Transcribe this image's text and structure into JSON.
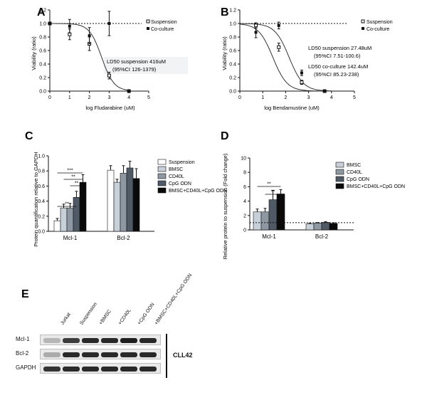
{
  "panels": {
    "A": {
      "letter": "A",
      "xlabel": "log Fludarabine (uM)",
      "ylabel": "Viability (ratio)",
      "annotation": [
        "LD50 suspension 416uM",
        "(95%CI 126-1379)"
      ],
      "legend": [
        "Suspension",
        "Co-culture"
      ]
    },
    "B": {
      "letter": "B",
      "xlabel": "log Bendamustine (uM)",
      "ylabel": "Viability (ratio)",
      "annotation1": [
        "LD50 suspension 27.48uM",
        "(95%CI 7.51-100.6)"
      ],
      "annotation2": [
        "LD50 co-culture 142.4uM",
        "(95%CI 85.23-238)"
      ],
      "legend": [
        "Suspension",
        "Co-culture"
      ]
    },
    "C": {
      "letter": "C",
      "ylabel": "Protein quantification relative to GAPDH",
      "legend": [
        "Suspension",
        "BMSC",
        "CD40L",
        "CpG ODN",
        "BMSC+CD40L+CpG ODN"
      ],
      "sig": [
        "***",
        "**",
        "**",
        "**"
      ]
    },
    "D": {
      "letter": "D",
      "ylabel": "Relative protein to suspension (Fold change)",
      "legend": [
        "BMSC",
        "CD40L",
        "CpG ODN",
        "BMSC+CD40L+CpG ODN"
      ],
      "sig": [
        "**",
        "**"
      ]
    },
    "E": {
      "letter": "E",
      "lanes": [
        "Jurkat",
        "Suspension",
        "+BMSC",
        "+CD40L",
        "+CpG ODN",
        "+BMSC+CD40L+CpG ODN"
      ],
      "rows": [
        "Mcl-1",
        "Bcl-2",
        "GAPDH"
      ],
      "cell_line": "CLL42",
      "band_intensity": {
        "Mcl-1": [
          0.25,
          0.85,
          0.95,
          0.95,
          1.0,
          0.95
        ],
        "Bcl-2": [
          0.3,
          0.95,
          0.95,
          0.95,
          0.95,
          0.95
        ],
        "GAPDH": [
          0.9,
          0.95,
          0.95,
          0.95,
          0.95,
          0.95
        ]
      }
    }
  },
  "chart_data": [
    {
      "type": "scatter",
      "panel": "A",
      "xlabel": "log Fludarabine (uM)",
      "ylabel": "Viability (ratio)",
      "xlim": [
        0,
        5
      ],
      "ylim": [
        0,
        1.2
      ],
      "xticks": [
        0,
        1,
        2,
        3,
        4,
        5
      ],
      "yticks": [
        0.0,
        0.2,
        0.4,
        0.6,
        0.8,
        1.0,
        1.2
      ],
      "series": [
        {
          "name": "Suspension",
          "x": [
            0,
            1,
            2,
            3,
            4
          ],
          "y": [
            1.0,
            0.84,
            0.7,
            0.23,
            0.0
          ],
          "err": [
            0.02,
            0.08,
            0.1,
            0.05,
            0.01
          ],
          "fit": "sigmoid",
          "ld50_log": 2.62
        },
        {
          "name": "Co-culture",
          "x": [
            0,
            1,
            2,
            3,
            4
          ],
          "y": [
            1.0,
            0.96,
            0.82,
            1.0,
            0.0
          ],
          "err": [
            0.02,
            0.1,
            0.12,
            0.18,
            0.01
          ],
          "fit": "dotted_at_1"
        }
      ]
    },
    {
      "type": "scatter",
      "panel": "B",
      "xlabel": "log Bendamustine (uM)",
      "ylabel": "Viability (ratio)",
      "xlim": [
        0,
        5
      ],
      "ylim": [
        0,
        1.2
      ],
      "xticks": [
        0,
        1,
        2,
        3,
        4,
        5
      ],
      "yticks": [
        0.0,
        0.2,
        0.4,
        0.6,
        0.8,
        1.0,
        1.2
      ],
      "series": [
        {
          "name": "Suspension",
          "x": [
            0.7,
            1.7,
            2.7,
            3.7
          ],
          "y": [
            0.97,
            0.65,
            0.13,
            0.0
          ],
          "err": [
            0.04,
            0.06,
            0.03,
            0.01
          ],
          "fit": "sigmoid",
          "ld50_log": 1.44
        },
        {
          "name": "Co-culture",
          "x": [
            0.7,
            1.7,
            2.7,
            3.7
          ],
          "y": [
            0.87,
            0.97,
            0.27,
            0.0
          ],
          "err": [
            0.08,
            0.05,
            0.04,
            0.01
          ],
          "fit": "sigmoid",
          "ld50_log": 2.15
        }
      ]
    },
    {
      "type": "bar",
      "panel": "C",
      "ylabel": "Protein quantification relative to GAPDH",
      "categories": [
        "Mcl-1",
        "Bcl-2"
      ],
      "ylim": [
        0,
        1.0
      ],
      "yticks": [
        0.0,
        0.2,
        0.4,
        0.6,
        0.8,
        1.0
      ],
      "series": [
        {
          "name": "Suspension",
          "values": [
            0.14,
            0.81
          ],
          "err": [
            0.03,
            0.06
          ]
        },
        {
          "name": "BMSC",
          "values": [
            0.31,
            0.65
          ],
          "err": [
            0.05,
            0.04
          ]
        },
        {
          "name": "CD40L",
          "values": [
            0.31,
            0.77
          ],
          "err": [
            0.06,
            0.1
          ]
        },
        {
          "name": "CpG ODN",
          "values": [
            0.45,
            0.84
          ],
          "err": [
            0.08,
            0.09
          ]
        },
        {
          "name": "BMSC+CD40L+CpG ODN",
          "values": [
            0.65,
            0.7
          ],
          "err": [
            0.1,
            0.13
          ]
        }
      ]
    },
    {
      "type": "bar",
      "panel": "D",
      "ylabel": "Relative protein to suspension (Fold change)",
      "categories": [
        "Mcl-1",
        "Bcl-2"
      ],
      "ylim": [
        0,
        10
      ],
      "yticks": [
        0,
        2,
        4,
        6,
        8,
        10
      ],
      "reference_line": 1,
      "series": [
        {
          "name": "BMSC",
          "values": [
            2.5,
            0.85
          ],
          "err": [
            0.4,
            0.08
          ]
        },
        {
          "name": "CD40L",
          "values": [
            2.5,
            0.95
          ],
          "err": [
            0.5,
            0.08
          ]
        },
        {
          "name": "CpG ODN",
          "values": [
            4.2,
            1.05
          ],
          "err": [
            1.3,
            0.1
          ]
        },
        {
          "name": "BMSC+CD40L+CpG ODN",
          "values": [
            5.0,
            0.9
          ],
          "err": [
            0.6,
            0.1
          ]
        }
      ]
    }
  ]
}
